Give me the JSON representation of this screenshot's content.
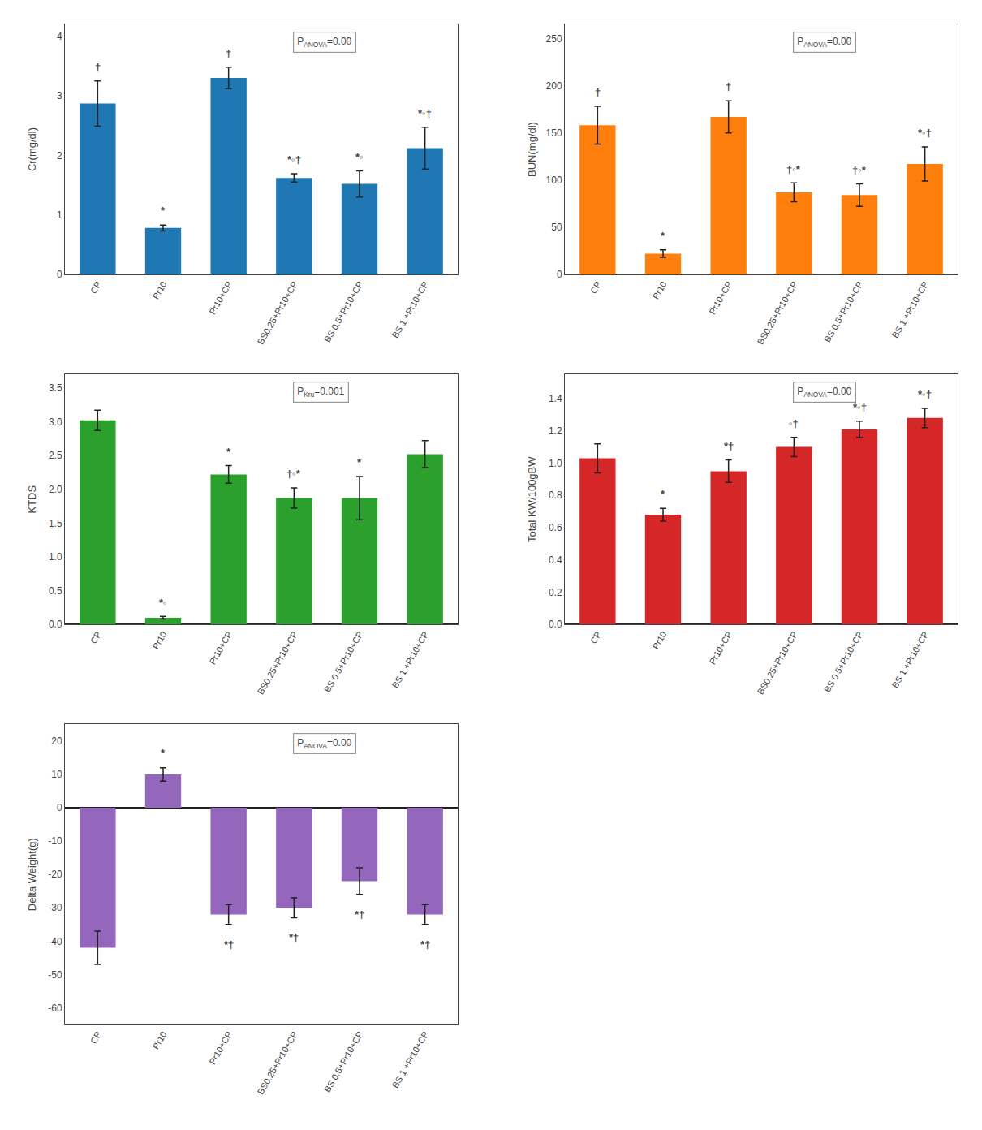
{
  "chart_data": [
    {
      "type": "bar",
      "categories": [
        "CP",
        "Pr10",
        "Pr10+CP",
        "BS0.25+Pr10+CP",
        "BS 0.5+Pr10+CP",
        "BS 1 +Pr10+CP"
      ],
      "values": [
        2.87,
        0.78,
        3.3,
        1.62,
        1.52,
        2.12
      ],
      "errors": [
        0.38,
        0.05,
        0.18,
        0.07,
        0.22,
        0.35
      ],
      "ylabel": "Cr(mg/dl)",
      "ylim": [
        0,
        4.2
      ],
      "yticks": [
        0,
        1,
        2,
        3,
        4
      ],
      "annotations": [
        "†",
        "*",
        "†",
        "*◦†",
        "*◦",
        "*◦†"
      ],
      "p_text": [
        "P",
        "ANOVA",
        "=0.00"
      ],
      "grid": false
    },
    {
      "type": "bar",
      "categories": [
        "CP",
        "Pr10",
        "Pr10+CP",
        "BS0.25+Pr10+CP",
        "BS 0.5+Pr10+CP",
        "BS 1 +Pr10+CP"
      ],
      "values": [
        158,
        22,
        167,
        87,
        84,
        117
      ],
      "errors": [
        20,
        4,
        17,
        10,
        12,
        18
      ],
      "ylabel": "BUN(mg/dl)",
      "ylim": [
        0,
        265
      ],
      "yticks": [
        0,
        50,
        100,
        150,
        200,
        250
      ],
      "annotations": [
        "†",
        "*",
        "†",
        "†◦*",
        "†◦*",
        "*◦†"
      ],
      "p_text": [
        "P",
        "ANOVA",
        "=0.00"
      ],
      "grid": false
    },
    {
      "type": "bar",
      "categories": [
        "CP",
        "Pr10",
        "Pr10+CP",
        "BS0.25+Pr10+CP",
        "BS 0.5+Pr10+CP",
        "BS 1 +Pr10+CP"
      ],
      "values": [
        3.02,
        0.1,
        2.22,
        1.87,
        1.87,
        2.52
      ],
      "errors": [
        0.15,
        0.02,
        0.13,
        0.15,
        0.32,
        0.2
      ],
      "ylabel": "KTDS",
      "ylim": [
        0,
        3.7
      ],
      "yticks": [
        {
          "value": 0,
          "label": "0.0"
        },
        0.5,
        {
          "value": 1.0,
          "label": "1.0"
        },
        1.5,
        {
          "value": 2.0,
          "label": "2.0"
        },
        2.5,
        {
          "value": 3.0,
          "label": "3.0"
        },
        3.5
      ],
      "annotations": [
        null,
        "*◦",
        "*",
        "†◦*",
        "*",
        null
      ],
      "p_text": [
        "P",
        "Kru",
        "=0.001"
      ],
      "grid": false
    },
    {
      "type": "bar",
      "categories": [
        "CP",
        "Pr10",
        "Pr10+CP",
        "BS0.25+Pr10+CP",
        "BS 0.5+Pr10+CP",
        "BS 1 +Pr10+CP"
      ],
      "values": [
        1.03,
        0.68,
        0.95,
        1.1,
        1.21,
        1.28
      ],
      "errors": [
        0.09,
        0.04,
        0.07,
        0.06,
        0.05,
        0.06
      ],
      "ylabel": "Total KW/100gBW",
      "ylim": [
        0,
        1.55
      ],
      "yticks": [
        {
          "value": 0,
          "label": "0.0"
        },
        0.2,
        0.4,
        0.6,
        0.8,
        {
          "value": 1.0,
          "label": "1.0"
        },
        1.2,
        1.4
      ],
      "annotations": [
        null,
        "*",
        "*†",
        "◦†",
        "*◦†",
        "*◦†"
      ],
      "p_text": [
        "P",
        "ANOVA",
        "=0.00"
      ],
      "grid": false
    },
    {
      "type": "bar",
      "categories": [
        "CP",
        "Pr10",
        "Pr10+CP",
        "BS0.25+Pr10+CP",
        "BS 0.5+Pr10+CP",
        "BS 1 +Pr10+CP"
      ],
      "values": [
        -42,
        10,
        -32,
        -30,
        -22,
        -32
      ],
      "errors": [
        5,
        2,
        3,
        3,
        4,
        3
      ],
      "ylabel": "Delta Weight(g)",
      "ylim": [
        -65,
        25
      ],
      "yticks": [
        -60,
        -50,
        -40,
        -30,
        -20,
        -10,
        0,
        10,
        20
      ],
      "annotations": [
        null,
        "*",
        "*†",
        "*†",
        "*†",
        "*†"
      ],
      "p_text": [
        "P",
        "ANOVA",
        "=0.00"
      ],
      "grid": false
    }
  ]
}
